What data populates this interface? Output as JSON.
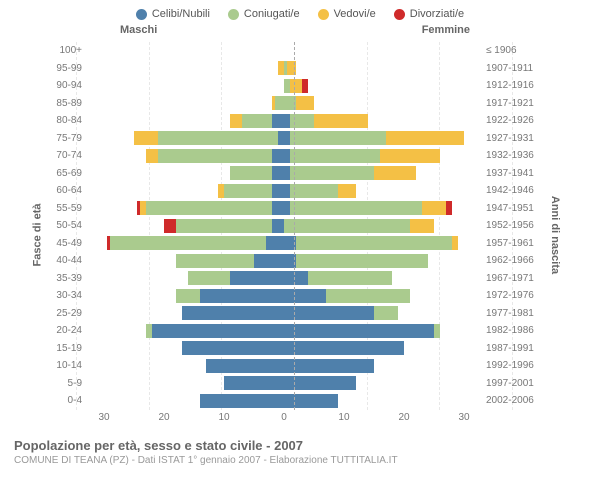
{
  "legend": [
    {
      "label": "Celibi/Nubili",
      "color": "#4f80ab"
    },
    {
      "label": "Coniugati/e",
      "color": "#aacb8e"
    },
    {
      "label": "Vedovi/e",
      "color": "#f4c045"
    },
    {
      "label": "Divorziati/e",
      "color": "#cf2a2a"
    }
  ],
  "header": {
    "male": "Maschi",
    "female": "Femmine"
  },
  "axis_labels": {
    "left": "Fasce di età",
    "right": "Anni di nascita"
  },
  "x_ticks": [
    30,
    20,
    10,
    0,
    10,
    20,
    30
  ],
  "x_max": 33,
  "colors": {
    "single": "#4f80ab",
    "married": "#aacb8e",
    "widowed": "#f4c045",
    "divorced": "#cf2a2a",
    "grid": "#e8e8e8",
    "center": "#aaaaaa"
  },
  "rows": [
    {
      "age": "100+",
      "year": "≤ 1906",
      "m": {
        "s": 0,
        "m": 0,
        "w": 0,
        "d": 0
      },
      "f": {
        "s": 0,
        "m": 0,
        "w": 0,
        "d": 0
      }
    },
    {
      "age": "95-99",
      "year": "1907-1911",
      "m": {
        "s": 0,
        "m": 0,
        "w": 1,
        "d": 0
      },
      "f": {
        "s": 0,
        "m": 0.5,
        "w": 1.5,
        "d": 0
      }
    },
    {
      "age": "90-94",
      "year": "1912-1916",
      "m": {
        "s": 0,
        "m": 0,
        "w": 0,
        "d": 0
      },
      "f": {
        "s": 0,
        "m": 1,
        "w": 2,
        "d": 1
      }
    },
    {
      "age": "85-89",
      "year": "1917-1921",
      "m": {
        "s": 0,
        "m": 1.5,
        "w": 0.5,
        "d": 0
      },
      "f": {
        "s": 0,
        "m": 2,
        "w": 3,
        "d": 0
      }
    },
    {
      "age": "80-84",
      "year": "1922-1926",
      "m": {
        "s": 2,
        "m": 5,
        "w": 2,
        "d": 0
      },
      "f": {
        "s": 1,
        "m": 4,
        "w": 9,
        "d": 0
      }
    },
    {
      "age": "75-79",
      "year": "1927-1931",
      "m": {
        "s": 1,
        "m": 20,
        "w": 4,
        "d": 0
      },
      "f": {
        "s": 1,
        "m": 16,
        "w": 13,
        "d": 0
      }
    },
    {
      "age": "70-74",
      "year": "1932-1936",
      "m": {
        "s": 2,
        "m": 19,
        "w": 2,
        "d": 0
      },
      "f": {
        "s": 1,
        "m": 15,
        "w": 10,
        "d": 0
      }
    },
    {
      "age": "65-69",
      "year": "1937-1941",
      "m": {
        "s": 2,
        "m": 7,
        "w": 0,
        "d": 0
      },
      "f": {
        "s": 1,
        "m": 14,
        "w": 7,
        "d": 0
      }
    },
    {
      "age": "60-64",
      "year": "1942-1946",
      "m": {
        "s": 2,
        "m": 8,
        "w": 1,
        "d": 0
      },
      "f": {
        "s": 1,
        "m": 8,
        "w": 3,
        "d": 0
      }
    },
    {
      "age": "55-59",
      "year": "1947-1951",
      "m": {
        "s": 2,
        "m": 21,
        "w": 1,
        "d": 0.5
      },
      "f": {
        "s": 1,
        "m": 22,
        "w": 4,
        "d": 1
      }
    },
    {
      "age": "50-54",
      "year": "1952-1956",
      "m": {
        "s": 2,
        "m": 16,
        "w": 0,
        "d": 2
      },
      "f": {
        "s": 0,
        "m": 21,
        "w": 4,
        "d": 0
      }
    },
    {
      "age": "45-49",
      "year": "1957-1961",
      "m": {
        "s": 3,
        "m": 26,
        "w": 0,
        "d": 0.5
      },
      "f": {
        "s": 2,
        "m": 26,
        "w": 1,
        "d": 0
      }
    },
    {
      "age": "40-44",
      "year": "1962-1966",
      "m": {
        "s": 5,
        "m": 13,
        "w": 0,
        "d": 0
      },
      "f": {
        "s": 2,
        "m": 22,
        "w": 0,
        "d": 0
      }
    },
    {
      "age": "35-39",
      "year": "1967-1971",
      "m": {
        "s": 9,
        "m": 7,
        "w": 0,
        "d": 0
      },
      "f": {
        "s": 4,
        "m": 14,
        "w": 0,
        "d": 0
      }
    },
    {
      "age": "30-34",
      "year": "1972-1976",
      "m": {
        "s": 14,
        "m": 4,
        "w": 0,
        "d": 0
      },
      "f": {
        "s": 7,
        "m": 14,
        "w": 0,
        "d": 0
      }
    },
    {
      "age": "25-29",
      "year": "1977-1981",
      "m": {
        "s": 17,
        "m": 0,
        "w": 0,
        "d": 0
      },
      "f": {
        "s": 15,
        "m": 4,
        "w": 0,
        "d": 0
      }
    },
    {
      "age": "20-24",
      "year": "1982-1986",
      "m": {
        "s": 22,
        "m": 1,
        "w": 0,
        "d": 0
      },
      "f": {
        "s": 25,
        "m": 1,
        "w": 0,
        "d": 0
      }
    },
    {
      "age": "15-19",
      "year": "1987-1991",
      "m": {
        "s": 17,
        "m": 0,
        "w": 0,
        "d": 0
      },
      "f": {
        "s": 20,
        "m": 0,
        "w": 0,
        "d": 0
      }
    },
    {
      "age": "10-14",
      "year": "1992-1996",
      "m": {
        "s": 13,
        "m": 0,
        "w": 0,
        "d": 0
      },
      "f": {
        "s": 15,
        "m": 0,
        "w": 0,
        "d": 0
      }
    },
    {
      "age": "5-9",
      "year": "1997-2001",
      "m": {
        "s": 10,
        "m": 0,
        "w": 0,
        "d": 0
      },
      "f": {
        "s": 12,
        "m": 0,
        "w": 0,
        "d": 0
      }
    },
    {
      "age": "0-4",
      "year": "2002-2006",
      "m": {
        "s": 14,
        "m": 0,
        "w": 0,
        "d": 0
      },
      "f": {
        "s": 9,
        "m": 0,
        "w": 0,
        "d": 0
      }
    }
  ],
  "footer": {
    "title": "Popolazione per età, sesso e stato civile - 2007",
    "subtitle": "COMUNE DI TEANA (PZ) - Dati ISTAT 1° gennaio 2007 - Elaborazione TUTTITALIA.IT"
  }
}
